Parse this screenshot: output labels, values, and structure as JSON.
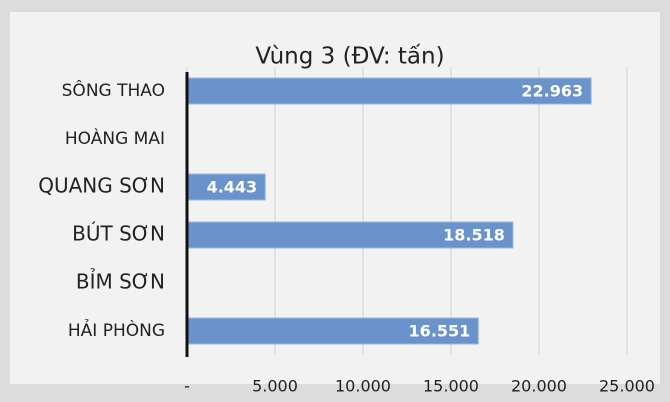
{
  "chart_data": {
    "type": "bar",
    "orientation": "horizontal",
    "title": "Vùng 3 (ĐV: tấn)",
    "categories": [
      "SÔNG THAO",
      "HOÀNG MAI",
      "QUANG SƠN",
      "BÚT SƠN",
      "BỈM SƠN",
      "HẢI PHÒNG"
    ],
    "values": [
      22963,
      null,
      4443,
      18518,
      null,
      16551
    ],
    "value_labels": [
      "22.963",
      null,
      "4.443",
      "18.518",
      null,
      "16.551"
    ],
    "color": "#6a93cb",
    "xlim": [
      0,
      25000
    ],
    "xticks": [
      {
        "value": 0,
        "label": "-"
      },
      {
        "value": 5000,
        "label": "5.000"
      },
      {
        "value": 10000,
        "label": "10.000"
      },
      {
        "value": 15000,
        "label": "15.000"
      },
      {
        "value": 20000,
        "label": "20.000"
      },
      {
        "value": 25000,
        "label": "25.000"
      }
    ],
    "grid": true
  }
}
